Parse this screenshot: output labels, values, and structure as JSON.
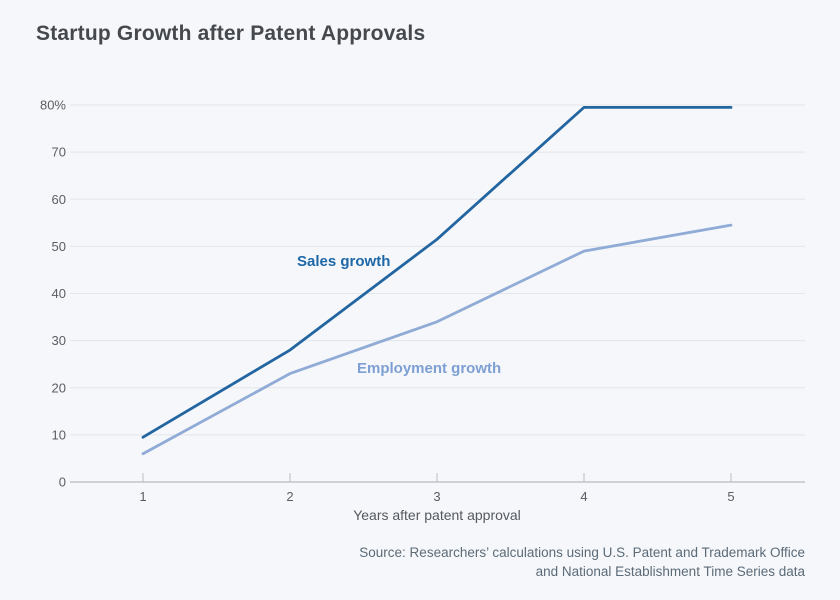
{
  "page": {
    "background": "#f5f7fa"
  },
  "chart_data": {
    "type": "line",
    "title": "Startup Growth after Patent Approvals",
    "xlabel": "Years after patent approval",
    "ylabel": "",
    "x": [
      1,
      2,
      3,
      4,
      5
    ],
    "xtick_labels": [
      "1",
      "2",
      "3",
      "4",
      "5"
    ],
    "ylim": [
      0,
      80
    ],
    "yticks": [
      0,
      10,
      20,
      30,
      40,
      50,
      60,
      70,
      80
    ],
    "ytick_labels": [
      "0",
      "10",
      "20",
      "30",
      "40",
      "50",
      "60",
      "70",
      "80%"
    ],
    "grid": true,
    "legend_position": "inline labels beside lines",
    "series": [
      {
        "name": "Sales growth",
        "values": [
          9.5,
          28,
          51.5,
          79.5,
          79.5
        ],
        "color": "#2265a0",
        "label_color": "#1e68a8"
      },
      {
        "name": "Employment growth",
        "values": [
          6,
          23,
          34,
          49,
          54.5
        ],
        "color": "#8fabd6",
        "label_color": "#7d9fd3"
      }
    ]
  },
  "source": {
    "line1": "Source: Researchers’ calculations using U.S. Patent and Trademark Office",
    "line2": "and National Establishment Time Series data"
  },
  "colors": {
    "background": "#f5f7fa",
    "grid": "#e3e6eb",
    "axis": "#a8acb3",
    "tick": "#b9bdc4",
    "title_text": "#45484d",
    "tick_label_text": "#5a5e64",
    "axis_label_text": "#55595f",
    "source_text": "#5c6b78"
  }
}
